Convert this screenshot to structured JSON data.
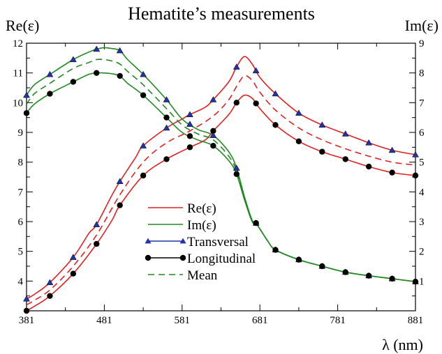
{
  "chart_data": {
    "type": "line",
    "title": "Hematite’s measurements",
    "xlabel": "λ (nm)",
    "ylabel_left": "Re(ε)",
    "ylabel_right": "Im(ε)",
    "xlim": [
      381,
      881
    ],
    "ylim_left": [
      3,
      12
    ],
    "ylim_right": [
      0,
      9
    ],
    "x_ticks": [
      381,
      481,
      581,
      681,
      781,
      881
    ],
    "y_ticks_left": [
      4,
      5,
      6,
      7,
      8,
      9,
      10,
      11,
      12
    ],
    "y_ticks_right": [
      1,
      2,
      3,
      4,
      5,
      6,
      7,
      8,
      9
    ],
    "grid": false,
    "legend_position": "center-left",
    "legend": [
      {
        "label": "Re(ε)",
        "style": "line",
        "color": "#dd2222"
      },
      {
        "label": "Im(ε)",
        "style": "line",
        "color": "#228822"
      },
      {
        "label": "Transversal",
        "style": "triangle-marker",
        "color": "#2233aa"
      },
      {
        "label": "Longitudinal",
        "style": "circle-marker",
        "color": "#000000"
      },
      {
        "label": "Mean",
        "style": "dashed",
        "color": "#228822"
      }
    ],
    "colors": {
      "re": "#dd2222",
      "im": "#228822",
      "transversal_marker": "#2233aa",
      "longitudinal_marker": "#000000"
    },
    "series": [
      {
        "quantity": "Re",
        "polarization": "Transversal",
        "axis": "left",
        "style": "solid",
        "marker": "triangle",
        "points": [
          [
            381,
            3.4
          ],
          [
            391,
            3.55
          ],
          [
            411,
            3.95
          ],
          [
            441,
            4.8
          ],
          [
            461,
            5.6
          ],
          [
            471,
            5.9
          ],
          [
            491,
            6.9
          ],
          [
            501,
            7.35
          ],
          [
            521,
            8.15
          ],
          [
            531,
            8.55
          ],
          [
            561,
            9.15
          ],
          [
            581,
            9.45
          ],
          [
            591,
            9.6
          ],
          [
            611,
            9.85
          ],
          [
            621,
            10.1
          ],
          [
            641,
            10.7
          ],
          [
            651,
            11.2
          ],
          [
            661,
            11.55
          ],
          [
            671,
            11.3
          ],
          [
            681,
            10.85
          ],
          [
            701,
            10.3
          ],
          [
            731,
            9.65
          ],
          [
            761,
            9.25
          ],
          [
            791,
            8.95
          ],
          [
            821,
            8.65
          ],
          [
            851,
            8.4
          ],
          [
            881,
            8.25
          ]
        ],
        "markers": [
          381,
          411,
          441,
          471,
          501,
          531,
          561,
          591,
          621,
          651,
          676,
          701,
          731,
          761,
          791,
          821,
          851,
          881
        ]
      },
      {
        "quantity": "Re",
        "polarization": "Mean",
        "axis": "left",
        "style": "dashed",
        "marker": "none",
        "points": [
          [
            381,
            3.2
          ],
          [
            391,
            3.35
          ],
          [
            411,
            3.7
          ],
          [
            441,
            4.5
          ],
          [
            471,
            5.55
          ],
          [
            501,
            6.9
          ],
          [
            531,
            8.0
          ],
          [
            561,
            8.65
          ],
          [
            591,
            9.05
          ],
          [
            621,
            9.55
          ],
          [
            641,
            10.1
          ],
          [
            651,
            10.55
          ],
          [
            661,
            10.9
          ],
          [
            671,
            10.75
          ],
          [
            681,
            10.35
          ],
          [
            701,
            9.75
          ],
          [
            731,
            9.15
          ],
          [
            761,
            8.75
          ],
          [
            791,
            8.45
          ],
          [
            821,
            8.2
          ],
          [
            851,
            8.0
          ],
          [
            881,
            7.9
          ]
        ]
      },
      {
        "quantity": "Re",
        "polarization": "Longitudinal",
        "axis": "left",
        "style": "solid",
        "marker": "circle",
        "points": [
          [
            381,
            3.0
          ],
          [
            391,
            3.15
          ],
          [
            411,
            3.5
          ],
          [
            441,
            4.25
          ],
          [
            471,
            5.25
          ],
          [
            491,
            6.05
          ],
          [
            501,
            6.55
          ],
          [
            531,
            7.55
          ],
          [
            561,
            8.1
          ],
          [
            591,
            8.5
          ],
          [
            611,
            8.75
          ],
          [
            621,
            9.05
          ],
          [
            641,
            9.6
          ],
          [
            651,
            10.0
          ],
          [
            661,
            10.25
          ],
          [
            671,
            10.15
          ],
          [
            681,
            9.8
          ],
          [
            701,
            9.25
          ],
          [
            731,
            8.7
          ],
          [
            761,
            8.35
          ],
          [
            791,
            8.1
          ],
          [
            821,
            7.85
          ],
          [
            851,
            7.65
          ],
          [
            881,
            7.55
          ]
        ],
        "markers": [
          381,
          411,
          441,
          471,
          501,
          531,
          561,
          591,
          621,
          651,
          676,
          701,
          731,
          761,
          791,
          821,
          851,
          881
        ]
      },
      {
        "quantity": "Im",
        "polarization": "Transversal",
        "axis": "right",
        "style": "solid",
        "marker": "triangle",
        "points": [
          [
            381,
            7.25
          ],
          [
            391,
            7.6
          ],
          [
            411,
            7.95
          ],
          [
            441,
            8.45
          ],
          [
            461,
            8.7
          ],
          [
            471,
            8.8
          ],
          [
            481,
            8.85
          ],
          [
            491,
            8.82
          ],
          [
            501,
            8.75
          ],
          [
            511,
            8.45
          ],
          [
            531,
            7.95
          ],
          [
            561,
            7.1
          ],
          [
            581,
            6.45
          ],
          [
            601,
            6.1
          ],
          [
            621,
            5.9
          ],
          [
            641,
            5.35
          ],
          [
            651,
            4.8
          ],
          [
            661,
            3.85
          ],
          [
            671,
            3.05
          ],
          [
            676,
            2.95
          ],
          [
            691,
            2.35
          ],
          [
            701,
            2.05
          ],
          [
            731,
            1.72
          ],
          [
            761,
            1.5
          ],
          [
            791,
            1.3
          ],
          [
            821,
            1.18
          ],
          [
            851,
            1.08
          ],
          [
            881,
            0.98
          ]
        ],
        "markers": [
          381,
          411,
          441,
          471,
          501,
          531,
          561,
          591,
          621,
          651,
          676,
          701,
          731,
          761,
          791,
          821,
          851,
          881
        ]
      },
      {
        "quantity": "Im",
        "polarization": "Mean",
        "axis": "right",
        "style": "dashed",
        "marker": "none",
        "points": [
          [
            381,
            6.95
          ],
          [
            391,
            7.3
          ],
          [
            411,
            7.65
          ],
          [
            441,
            8.15
          ],
          [
            461,
            8.35
          ],
          [
            471,
            8.45
          ],
          [
            481,
            8.45
          ],
          [
            491,
            8.4
          ],
          [
            501,
            8.3
          ],
          [
            511,
            8.05
          ],
          [
            531,
            7.6
          ],
          [
            561,
            6.8
          ],
          [
            581,
            6.25
          ],
          [
            601,
            5.95
          ],
          [
            621,
            5.75
          ],
          [
            641,
            5.2
          ],
          [
            651,
            4.7
          ],
          [
            661,
            3.8
          ],
          [
            671,
            3.0
          ],
          [
            676,
            2.95
          ],
          [
            691,
            2.35
          ],
          [
            701,
            2.05
          ],
          [
            731,
            1.72
          ],
          [
            761,
            1.5
          ],
          [
            791,
            1.3
          ],
          [
            821,
            1.18
          ],
          [
            851,
            1.08
          ],
          [
            881,
            0.98
          ]
        ]
      },
      {
        "quantity": "Im",
        "polarization": "Longitudinal",
        "axis": "right",
        "style": "solid",
        "marker": "circle",
        "points": [
          [
            381,
            6.65
          ],
          [
            391,
            6.95
          ],
          [
            411,
            7.3
          ],
          [
            441,
            7.7
          ],
          [
            461,
            7.95
          ],
          [
            471,
            8.0
          ],
          [
            481,
            8.0
          ],
          [
            491,
            7.97
          ],
          [
            501,
            7.9
          ],
          [
            511,
            7.65
          ],
          [
            531,
            7.25
          ],
          [
            561,
            6.5
          ],
          [
            581,
            6.0
          ],
          [
            601,
            5.75
          ],
          [
            621,
            5.55
          ],
          [
            641,
            5.05
          ],
          [
            651,
            4.6
          ],
          [
            661,
            3.75
          ],
          [
            671,
            3.0
          ],
          [
            676,
            2.95
          ],
          [
            691,
            2.35
          ],
          [
            701,
            2.05
          ],
          [
            731,
            1.72
          ],
          [
            761,
            1.5
          ],
          [
            791,
            1.3
          ],
          [
            821,
            1.18
          ],
          [
            851,
            1.08
          ],
          [
            881,
            0.98
          ]
        ],
        "markers": [
          381,
          411,
          441,
          471,
          501,
          531,
          561,
          591,
          621,
          651,
          676,
          701,
          731,
          761,
          791,
          821,
          851,
          881
        ]
      }
    ]
  }
}
